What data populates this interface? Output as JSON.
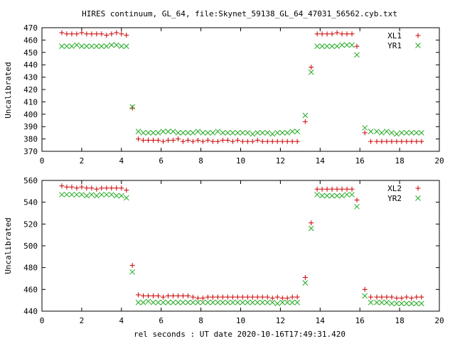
{
  "title": "HIRES continuum, GL_64, file:Skynet_59138_GL_64_47031_56562.cyb.txt",
  "xlabel": "rel seconds : UT date 2020-10-16T17:49:31.420",
  "colors": {
    "plus": "#cc0000",
    "cross": "#22aa22",
    "axis": "#000000",
    "grid": "#888888"
  },
  "chart_data": [
    {
      "type": "scatter",
      "ylabel": "Uncalibrated",
      "xlim": [
        0,
        20
      ],
      "ylim": [
        370,
        470
      ],
      "xticks": [
        0,
        2,
        4,
        6,
        8,
        10,
        12,
        14,
        16,
        18,
        20
      ],
      "yticks": [
        370,
        380,
        390,
        400,
        410,
        420,
        430,
        440,
        450,
        460,
        470
      ],
      "legend_position": "top-right",
      "series": [
        {
          "name": "XL1",
          "marker": "plus",
          "x": [
            1.0,
            1.25,
            1.5,
            1.75,
            2.0,
            2.25,
            2.5,
            2.75,
            3.0,
            3.25,
            3.5,
            3.75,
            4.0,
            4.25,
            4.55,
            4.85,
            5.1,
            5.35,
            5.6,
            5.85,
            6.1,
            6.35,
            6.6,
            6.85,
            7.1,
            7.35,
            7.6,
            7.85,
            8.1,
            8.35,
            8.6,
            8.85,
            9.1,
            9.35,
            9.6,
            9.85,
            10.1,
            10.35,
            10.6,
            10.85,
            11.1,
            11.35,
            11.6,
            11.85,
            12.1,
            12.35,
            12.6,
            12.85,
            13.25,
            13.55,
            13.85,
            14.1,
            14.35,
            14.6,
            14.85,
            15.1,
            15.35,
            15.6,
            15.85,
            16.25,
            16.55,
            16.85,
            17.1,
            17.35,
            17.6,
            17.85,
            18.1,
            18.35,
            18.6,
            18.85,
            19.1
          ],
          "y": [
            466,
            465,
            465,
            465,
            466,
            465,
            465,
            465,
            465,
            464,
            465,
            466,
            465,
            464,
            405,
            380,
            379,
            379,
            379,
            379,
            378,
            379,
            379,
            380,
            378,
            379,
            378,
            379,
            378,
            379,
            378,
            378,
            379,
            379,
            378,
            379,
            378,
            378,
            378,
            379,
            378,
            378,
            378,
            378,
            378,
            378,
            378,
            378,
            394,
            438,
            465,
            465,
            465,
            465,
            466,
            465,
            465,
            465,
            455,
            385,
            378,
            378,
            378,
            378,
            378,
            378,
            378,
            378,
            378,
            378,
            378
          ]
        },
        {
          "name": "YR1",
          "marker": "cross",
          "x": [
            1.0,
            1.25,
            1.5,
            1.75,
            2.0,
            2.25,
            2.5,
            2.75,
            3.0,
            3.25,
            3.5,
            3.75,
            4.0,
            4.25,
            4.55,
            4.85,
            5.1,
            5.35,
            5.6,
            5.85,
            6.1,
            6.35,
            6.6,
            6.85,
            7.1,
            7.35,
            7.6,
            7.85,
            8.1,
            8.35,
            8.6,
            8.85,
            9.1,
            9.35,
            9.6,
            9.85,
            10.1,
            10.35,
            10.6,
            10.85,
            11.1,
            11.35,
            11.6,
            11.85,
            12.1,
            12.35,
            12.6,
            12.85,
            13.25,
            13.55,
            13.85,
            14.1,
            14.35,
            14.6,
            14.85,
            15.1,
            15.35,
            15.6,
            15.85,
            16.25,
            16.55,
            16.85,
            17.1,
            17.35,
            17.6,
            17.85,
            18.1,
            18.35,
            18.6,
            18.85,
            19.1
          ],
          "y": [
            455,
            455,
            455,
            456,
            455,
            455,
            455,
            455,
            455,
            455,
            456,
            456,
            455,
            455,
            406,
            386,
            385,
            385,
            385,
            385,
            386,
            386,
            386,
            385,
            385,
            385,
            385,
            386,
            385,
            385,
            385,
            386,
            385,
            385,
            385,
            385,
            385,
            385,
            384,
            385,
            385,
            385,
            384,
            385,
            385,
            385,
            386,
            386,
            399,
            434,
            455,
            455,
            455,
            455,
            455,
            456,
            456,
            456,
            448,
            389,
            386,
            386,
            385,
            386,
            385,
            384,
            385,
            385,
            385,
            385,
            385
          ]
        }
      ]
    },
    {
      "type": "scatter",
      "ylabel": "Uncalibrated",
      "xlim": [
        0,
        20
      ],
      "ylim": [
        440,
        560
      ],
      "xticks": [
        0,
        2,
        4,
        6,
        8,
        10,
        12,
        14,
        16,
        18,
        20
      ],
      "yticks": [
        440,
        460,
        480,
        500,
        520,
        540,
        560
      ],
      "legend_position": "top-right",
      "series": [
        {
          "name": "XL2",
          "marker": "plus",
          "x": [
            1.0,
            1.25,
            1.5,
            1.75,
            2.0,
            2.25,
            2.5,
            2.75,
            3.0,
            3.25,
            3.5,
            3.75,
            4.0,
            4.25,
            4.55,
            4.85,
            5.1,
            5.35,
            5.6,
            5.85,
            6.1,
            6.35,
            6.6,
            6.85,
            7.1,
            7.35,
            7.6,
            7.85,
            8.1,
            8.35,
            8.6,
            8.85,
            9.1,
            9.35,
            9.6,
            9.85,
            10.1,
            10.35,
            10.6,
            10.85,
            11.1,
            11.35,
            11.6,
            11.85,
            12.1,
            12.35,
            12.6,
            12.85,
            13.25,
            13.55,
            13.85,
            14.1,
            14.35,
            14.6,
            14.85,
            15.1,
            15.35,
            15.6,
            15.85,
            16.25,
            16.55,
            16.85,
            17.1,
            17.35,
            17.6,
            17.85,
            18.1,
            18.35,
            18.6,
            18.85,
            19.1
          ],
          "y": [
            555,
            554,
            554,
            553,
            554,
            553,
            553,
            552,
            553,
            553,
            553,
            553,
            553,
            551,
            482,
            455,
            454,
            454,
            454,
            454,
            453,
            454,
            454,
            454,
            454,
            454,
            453,
            452,
            452,
            453,
            453,
            453,
            453,
            453,
            453,
            453,
            453,
            453,
            453,
            453,
            453,
            453,
            452,
            453,
            452,
            452,
            453,
            453,
            471,
            521,
            552,
            552,
            552,
            552,
            552,
            552,
            552,
            552,
            542,
            460,
            453,
            453,
            453,
            453,
            453,
            452,
            452,
            453,
            452,
            453,
            453
          ]
        },
        {
          "name": "YR2",
          "marker": "cross",
          "x": [
            1.0,
            1.25,
            1.5,
            1.75,
            2.0,
            2.25,
            2.5,
            2.75,
            3.0,
            3.25,
            3.5,
            3.75,
            4.0,
            4.25,
            4.55,
            4.85,
            5.1,
            5.35,
            5.6,
            5.85,
            6.1,
            6.35,
            6.6,
            6.85,
            7.1,
            7.35,
            7.6,
            7.85,
            8.1,
            8.35,
            8.6,
            8.85,
            9.1,
            9.35,
            9.6,
            9.85,
            10.1,
            10.35,
            10.6,
            10.85,
            11.1,
            11.35,
            11.6,
            11.85,
            12.1,
            12.35,
            12.6,
            12.85,
            13.25,
            13.55,
            13.85,
            14.1,
            14.35,
            14.6,
            14.85,
            15.1,
            15.35,
            15.6,
            15.85,
            16.25,
            16.55,
            16.85,
            17.1,
            17.35,
            17.6,
            17.85,
            18.1,
            18.35,
            18.6,
            18.85,
            19.1
          ],
          "y": [
            547,
            547,
            547,
            547,
            547,
            546,
            547,
            546,
            547,
            547,
            547,
            546,
            546,
            544,
            476,
            448,
            448,
            449,
            448,
            448,
            448,
            448,
            448,
            448,
            448,
            448,
            448,
            448,
            448,
            448,
            448,
            448,
            448,
            448,
            448,
            448,
            448,
            448,
            448,
            448,
            448,
            448,
            448,
            447,
            448,
            448,
            448,
            448,
            466,
            516,
            547,
            546,
            546,
            546,
            546,
            546,
            547,
            547,
            536,
            454,
            448,
            448,
            448,
            448,
            447,
            447,
            447,
            447,
            447,
            447,
            447
          ]
        }
      ]
    }
  ]
}
